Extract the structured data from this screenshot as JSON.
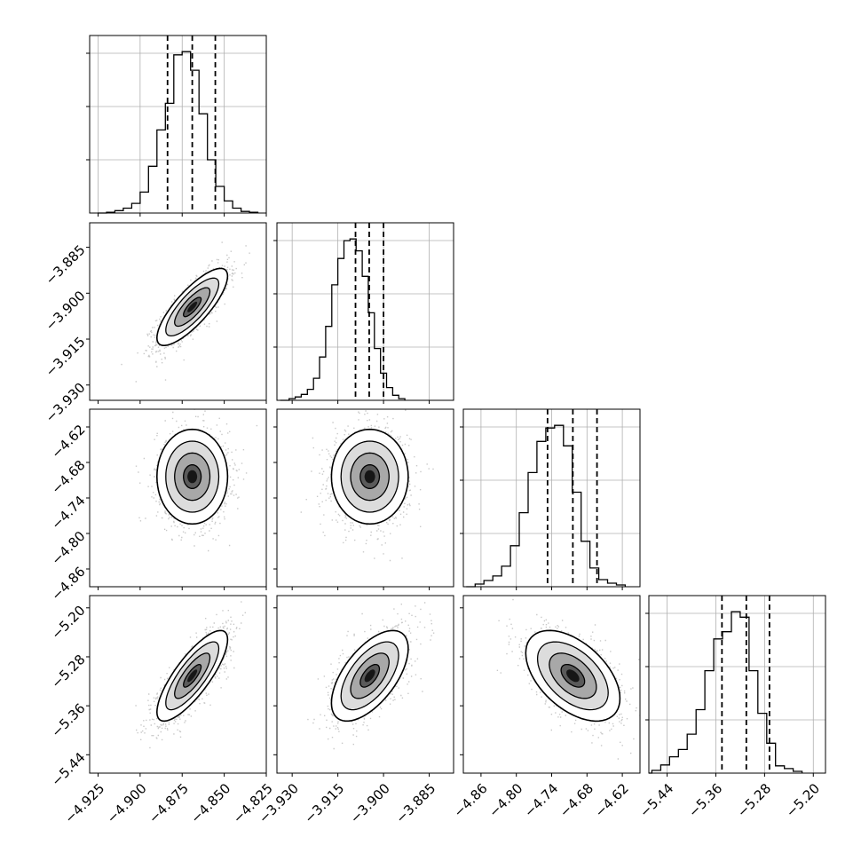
{
  "chart_data": {
    "type": "corner",
    "title": "",
    "parameters": [
      {
        "range": [
          -4.93,
          -4.825
        ],
        "ticks": [
          -4.925,
          -4.9,
          -4.875,
          -4.85,
          -4.825
        ],
        "tick_labels": [
          "−4.925",
          "−4.900",
          "−4.875",
          "−4.850",
          "−4.825"
        ],
        "quantiles": [
          -4.8837,
          -4.869,
          -4.8553
        ],
        "hist_edges_start": -4.92,
        "hist_bin_width": 0.005,
        "hist_counts": [
          1,
          3,
          6,
          12,
          26,
          58,
          103,
          136,
          196,
          200,
          177,
          123,
          66,
          33,
          15,
          6,
          2,
          1
        ]
      },
      {
        "range": [
          -3.935,
          -3.877
        ],
        "ticks": [
          -3.93,
          -3.915,
          -3.9,
          -3.885
        ],
        "tick_labels": [
          "−3.930",
          "−3.915",
          "−3.900",
          "−3.885"
        ],
        "quantiles": [
          -3.9092,
          -3.9047,
          -3.9
        ],
        "hist_edges_start": -3.931,
        "hist_bin_width": 0.002,
        "hist_counts": [
          2,
          4,
          7,
          13,
          26,
          51,
          87,
          136,
          167,
          188,
          190,
          176,
          146,
          103,
          61,
          32,
          15,
          6,
          2
        ]
      },
      {
        "range": [
          -4.89,
          -4.59
        ],
        "ticks": [
          -4.86,
          -4.8,
          -4.74,
          -4.68,
          -4.62
        ],
        "tick_labels": [
          "−4.86",
          "−4.80",
          "−4.74",
          "−4.68",
          "−4.62"
        ],
        "quantiles": [
          -4.747,
          -4.704,
          -4.663
        ],
        "hist_edges_start": -4.87,
        "hist_bin_width": 0.015,
        "hist_counts": [
          3,
          7,
          12,
          23,
          46,
          83,
          128,
          163,
          178,
          181,
          158,
          106,
          51,
          21,
          8,
          4,
          2
        ]
      },
      {
        "range": [
          -5.47,
          -5.18
        ],
        "ticks": [
          -5.44,
          -5.36,
          -5.28,
          -5.2
        ],
        "tick_labels": [
          "−5.44",
          "−5.36",
          "−5.28",
          "−5.20"
        ],
        "quantiles": [
          -5.35,
          -5.31,
          -5.272
        ],
        "hist_edges_start": -5.465,
        "hist_bin_width": 0.0145,
        "hist_counts": [
          3,
          9,
          18,
          26,
          43,
          70,
          113,
          148,
          156,
          178,
          172,
          113,
          66,
          33,
          8,
          5,
          2
        ]
      }
    ],
    "pairs": [
      {
        "row": 1,
        "col": 0,
        "center": [
          -4.869,
          -3.9045
        ],
        "sigma": [
          0.0105,
          0.0063
        ],
        "corr": 0.8
      },
      {
        "row": 2,
        "col": 0,
        "center": [
          -4.869,
          -4.704
        ],
        "sigma": [
          0.0105,
          0.04
        ],
        "corr": 0.0
      },
      {
        "row": 2,
        "col": 1,
        "center": [
          -3.9045,
          -4.704
        ],
        "sigma": [
          0.0063,
          0.04
        ],
        "corr": 0.0
      },
      {
        "row": 3,
        "col": 0,
        "center": [
          -4.869,
          -5.311
        ],
        "sigma": [
          0.0105,
          0.037
        ],
        "corr": 0.8
      },
      {
        "row": 3,
        "col": 1,
        "center": [
          -3.9045,
          -5.311
        ],
        "sigma": [
          0.0063,
          0.037
        ],
        "corr": 0.6
      },
      {
        "row": 3,
        "col": 2,
        "center": [
          -4.704,
          -5.311
        ],
        "sigma": [
          0.04,
          0.037
        ],
        "corr": -0.5
      }
    ],
    "contour_levels_sigma": [
      0.5,
      1.0,
      1.5,
      2.0
    ],
    "grid": true,
    "colors": {
      "line": "#000000",
      "grid": "#b0b0b0",
      "scatter": "#9a9a9a"
    }
  }
}
